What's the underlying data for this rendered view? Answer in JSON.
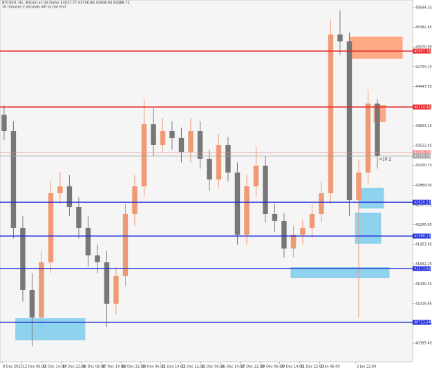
{
  "chart_data": {
    "type": "candlestick",
    "title": "BTCUSD, H1:  Bitcoin vs US Dollar  43527.77 43706.86 43408.04 43488.72",
    "subtitle": "10 minutes 2 seconds left to bar end",
    "timer_label": "<10:2",
    "up_color": "#ee9a74",
    "down_color": "#777777",
    "open": [
      44000,
      43743,
      42217,
      41236,
      40800,
      41672,
      42762,
      42871,
      42544,
      42217,
      41781,
      41672,
      41018,
      41454,
      42435,
      42871,
      43852,
      43525,
      43743,
      43634,
      43416,
      43743,
      43307,
      42980,
      43525,
      43089,
      42108,
      42871,
      43198,
      42435,
      42326,
      41890,
      42108,
      42217,
      42435,
      42762,
      45269,
      45160,
      42653,
      43089,
      44179
    ],
    "high": [
      44150,
      43900,
      42400,
      41500,
      41850,
      42950,
      43100,
      43050,
      42700,
      42400,
      41950,
      41850,
      41600,
      42600,
      43050,
      44250,
      44100,
      43950,
      43900,
      43800,
      43950,
      43900,
      43450,
      43700,
      43650,
      43250,
      43050,
      43500,
      43350,
      42600,
      42450,
      42250,
      42350,
      42600,
      42950,
      45500,
      45650,
      45300,
      43300,
      44400,
      44250
    ],
    "low": [
      43600,
      42050,
      41050,
      40350,
      40650,
      41500,
      42600,
      42400,
      42050,
      41600,
      41500,
      40650,
      40850,
      41300,
      42250,
      42700,
      43350,
      43400,
      43450,
      43250,
      43250,
      43150,
      42800,
      42850,
      42950,
      41950,
      41950,
      42700,
      42300,
      42150,
      41750,
      41750,
      41950,
      42050,
      42300,
      42600,
      44950,
      42400,
      40800,
      42900,
      43150
    ],
    "close": [
      43743,
      42217,
      41236,
      40800,
      41672,
      42762,
      42871,
      42544,
      42217,
      41781,
      41672,
      41018,
      41454,
      42435,
      42871,
      43852,
      43525,
      43743,
      43634,
      43416,
      43743,
      43307,
      42980,
      43525,
      43089,
      42108,
      42871,
      43198,
      42435,
      42326,
      41890,
      42108,
      42217,
      42435,
      42762,
      45269,
      45160,
      42653,
      43089,
      44179,
      43350
    ],
    "xlim": [
      -0.44,
      43.78
    ],
    "xticks": [
      {
        "value": -0.22,
        "label": "8 Dec 2023"
      },
      {
        "value": 1.91,
        "label": "12 Dec 06:00"
      },
      {
        "value": 4.03,
        "label": "13 Dec 14:00"
      },
      {
        "value": 6.16,
        "label": "14 Dec 22:00"
      },
      {
        "value": 8.28,
        "label": "16 Dec 06:00"
      },
      {
        "value": 10.41,
        "label": "17 Dec 14:00"
      },
      {
        "value": 12.54,
        "label": "18 Dec 22:00"
      },
      {
        "value": 14.66,
        "label": "20 Dec 06:00"
      },
      {
        "value": 16.79,
        "label": "21 Dec 14:00"
      },
      {
        "value": 18.91,
        "label": "22 Dec 22:00"
      },
      {
        "value": 21.04,
        "label": "25 Dec 06:00"
      },
      {
        "value": 23.17,
        "label": "26 Dec 14:00"
      },
      {
        "value": 25.29,
        "label": "27 Dec 22:00"
      },
      {
        "value": 27.42,
        "label": "29 Dec 06:00"
      },
      {
        "value": 29.54,
        "label": "30 Dec 14:00"
      },
      {
        "value": 31.67,
        "label": "31 Dec 22:00"
      },
      {
        "value": 33.8,
        "label": "2 Jan 06:00"
      },
      {
        "value": 37.7,
        "label": "3 Jan 22:00"
      }
    ],
    "ylim": [
      40102,
      45814
    ],
    "yticks": [
      45694.35,
      45382.65,
      45070.95,
      44759.25,
      44447.55,
      44135.85,
      43824.15,
      43512.45,
      43200.75,
      42889.05,
      42577.35,
      42265.65,
      41953.95,
      41642.25,
      41330.55,
      41018.85,
      40707.15,
      40395.45
    ],
    "levels": [
      {
        "value": 45007.31,
        "color": "#e8262b"
      },
      {
        "value": 44124.42,
        "color": "#e8262b"
      },
      {
        "value": 43405.03,
        "color": "#f08a8a"
      },
      {
        "value": 43350.54,
        "color": "#a0a0a0"
      },
      {
        "value": 42620.21,
        "color": "#1c2bd6"
      },
      {
        "value": 42086.13,
        "color": "#1c2bd6"
      },
      {
        "value": 41573.82,
        "color": "#1c2bd6"
      },
      {
        "value": 40723.64,
        "color": "#1c2bd6"
      }
    ],
    "zones": [
      {
        "x": [
          37.0,
          42.7
        ],
        "y": [
          44887.4,
          45236.2
        ],
        "color": "#ff9a70"
      },
      {
        "x": [
          39.6,
          40.9
        ],
        "y": [
          43884.6,
          44157.1
        ],
        "color": "#ff9a70"
      },
      {
        "x": [
          1.2,
          8.7
        ],
        "y": [
          40440.2,
          40789.0
        ],
        "color": "#7ccbec"
      },
      {
        "x": [
          38.0,
          40.7
        ],
        "y": [
          42522.1,
          42849.1
        ],
        "color": "#7ccbec"
      },
      {
        "x": [
          37.6,
          40.4
        ],
        "y": [
          41966.2,
          42456.7
        ],
        "color": "#7ccbec"
      },
      {
        "x": [
          30.7,
          41.3
        ],
        "y": [
          41421.2,
          41595.6
        ],
        "color": "#7ccbec"
      }
    ]
  }
}
